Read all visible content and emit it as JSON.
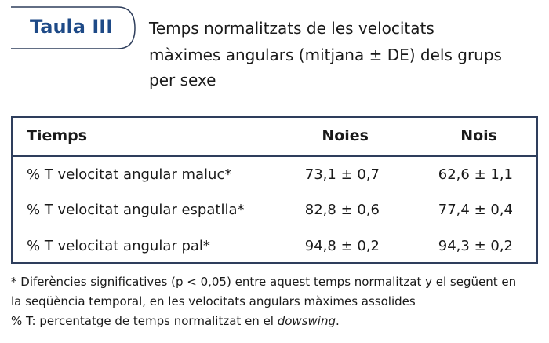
{
  "header": {
    "label": "Taula III",
    "title_lines": [
      "Temps normalitzats de les velocitats",
      "màximes angulars (mitjana ± DE) dels grups",
      "per sexe"
    ]
  },
  "table": {
    "columns": [
      "Tiemps",
      "Noies",
      "Nois"
    ],
    "rows": [
      [
        "% T velocitat angular maluc*",
        "73,1 ± 0,7",
        "62,6 ± 1,1"
      ],
      [
        "% T velocitat angular espatlla*",
        "82,8 ± 0,6",
        "77,4 ± 0,4"
      ],
      [
        "% T velocitat angular pal*",
        "94,8 ± 0,2",
        "94,3 ± 0,2"
      ]
    ]
  },
  "footnotes": {
    "significance_lines": [
      "* Diferències significatives (p < 0,05) entre aquest temps normalitzat y el següent en",
      "la seqüència temporal, en les velocitats angulars màximes assolides"
    ],
    "definition": {
      "before": "% T: percentatge de temps normalitzat en el ",
      "italic": "dowswing",
      "after": "."
    }
  }
}
